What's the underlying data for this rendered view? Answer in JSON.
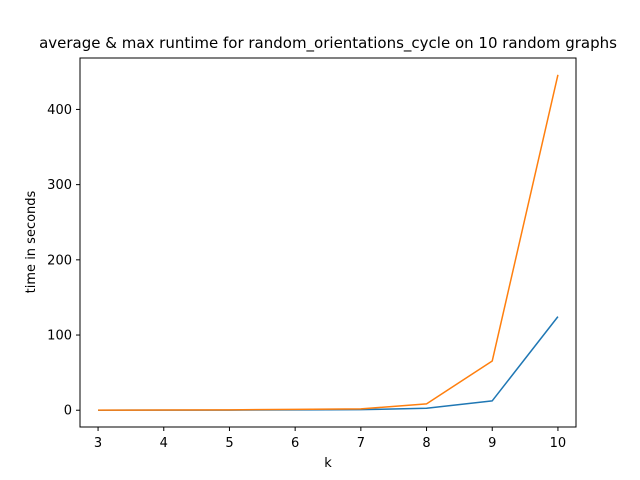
{
  "chart_data": {
    "type": "line",
    "title": "average & max runtime for random_orientations_cycle on 10 random graphs",
    "xlabel": "k",
    "ylabel": "time in seconds",
    "x": [
      3,
      4,
      5,
      6,
      7,
      8,
      9,
      10
    ],
    "xlim": [
      2.725,
      10.275
    ],
    "ylim": [
      -22.3,
      468.4
    ],
    "xticks": [
      3,
      4,
      5,
      6,
      7,
      8,
      9,
      10
    ],
    "yticks": [
      0,
      100,
      200,
      300,
      400
    ],
    "grid": false,
    "legend": "none",
    "series": [
      {
        "color": "#1f77b4",
        "values": [
          0.05,
          0.1,
          0.2,
          0.5,
          0.8,
          2.6,
          12.5,
          124.5
        ]
      },
      {
        "color": "#ff7f0e",
        "values": [
          0.1,
          0.3,
          0.5,
          1.2,
          1.8,
          8.5,
          65.5,
          446.0
        ]
      }
    ]
  }
}
